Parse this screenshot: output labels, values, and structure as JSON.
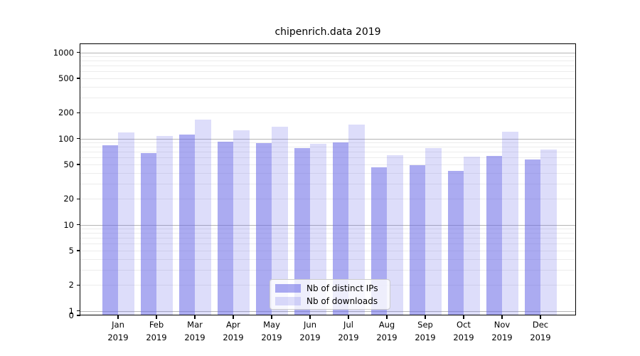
{
  "figure": {
    "title": "chipenrich.data 2019"
  },
  "chart_data": {
    "type": "bar",
    "title": "chipenrich.data 2019",
    "categories": [
      "Jan 2019",
      "Feb 2019",
      "Mar 2019",
      "Apr 2019",
      "May 2019",
      "Jun 2019",
      "Jul 2019",
      "Aug 2019",
      "Sep 2019",
      "Oct 2019",
      "Nov 2019",
      "Dec 2019"
    ],
    "series": [
      {
        "name": "Nb of distinct IPs",
        "color": "#6666e68c",
        "values": [
          84,
          68,
          111,
          92,
          89,
          78,
          90,
          46,
          49,
          42,
          63,
          57
        ]
      },
      {
        "name": "Nb of downloads",
        "color": "#6666e638",
        "values": [
          117,
          107,
          167,
          124,
          136,
          87,
          144,
          64,
          78,
          62,
          121,
          75
        ]
      }
    ],
    "xlabel": "",
    "ylabel": "",
    "yscale": "symlog",
    "yticks": [
      0,
      1,
      2,
      5,
      10,
      20,
      50,
      100,
      200,
      500,
      1000
    ],
    "ylim": [
      0,
      1280
    ],
    "grid": "both",
    "legend_position": "lower-center",
    "colors": {
      "major_gridline": "#b5b5b5",
      "minor_gridline": "#ececec",
      "axis": "#000000"
    }
  }
}
